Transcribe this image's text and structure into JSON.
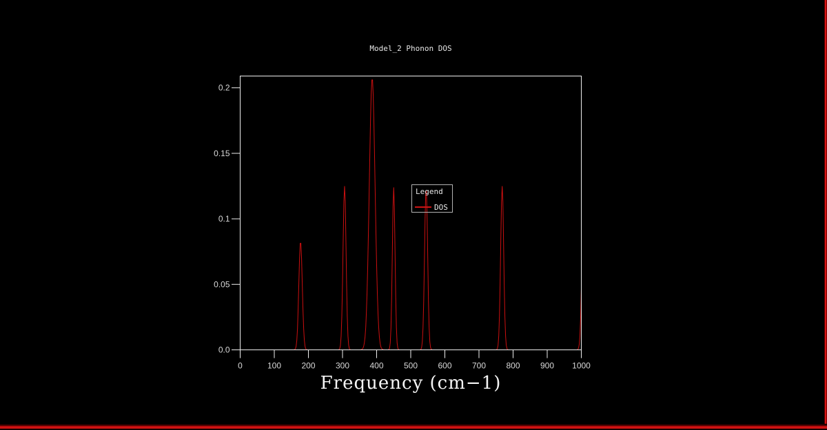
{
  "window": {
    "background": "#000000",
    "right_border_color": "#d81414",
    "bottom_border_color": "#c81212"
  },
  "chart_data": {
    "type": "line",
    "title": "Model_2 Phonon DOS",
    "xlabel": "Frequency (cm−1)",
    "ylabel": "",
    "xlim": [
      0,
      1000
    ],
    "ylim": [
      0,
      0.209
    ],
    "x_ticks": [
      0,
      100,
      200,
      300,
      400,
      500,
      600,
      700,
      800,
      900,
      1000
    ],
    "x_tick_labels": [
      "0",
      "100",
      "200",
      "300",
      "400",
      "500",
      "600",
      "700",
      "800",
      "900",
      "1000"
    ],
    "y_ticks": [
      0,
      0.05,
      0.1,
      0.15,
      0.2
    ],
    "y_tick_labels": [
      "0.0",
      "0.05",
      "0.1",
      "0.15",
      "0.2"
    ],
    "grid": false,
    "frame_color": "#f0f0f0",
    "tick_label_color": "#d8d8d8",
    "legend": {
      "title": "Legend",
      "position": "inside-center-right"
    },
    "series": [
      {
        "name": "DOS",
        "color": "#cc1010",
        "peaks": [
          {
            "center": 177,
            "height": 0.083,
            "sigma": 5.0
          },
          {
            "center": 306,
            "height": 0.125,
            "sigma": 4.5
          },
          {
            "center": 387,
            "height": 0.2075,
            "sigma": 8.5
          },
          {
            "center": 450,
            "height": 0.124,
            "sigma": 4.0
          },
          {
            "center": 545,
            "height": 0.124,
            "sigma": 4.5
          },
          {
            "center": 768,
            "height": 0.125,
            "sigma": 4.5
          },
          {
            "center": 1007,
            "height": 0.125,
            "sigma": 5.0
          }
        ]
      }
    ]
  }
}
